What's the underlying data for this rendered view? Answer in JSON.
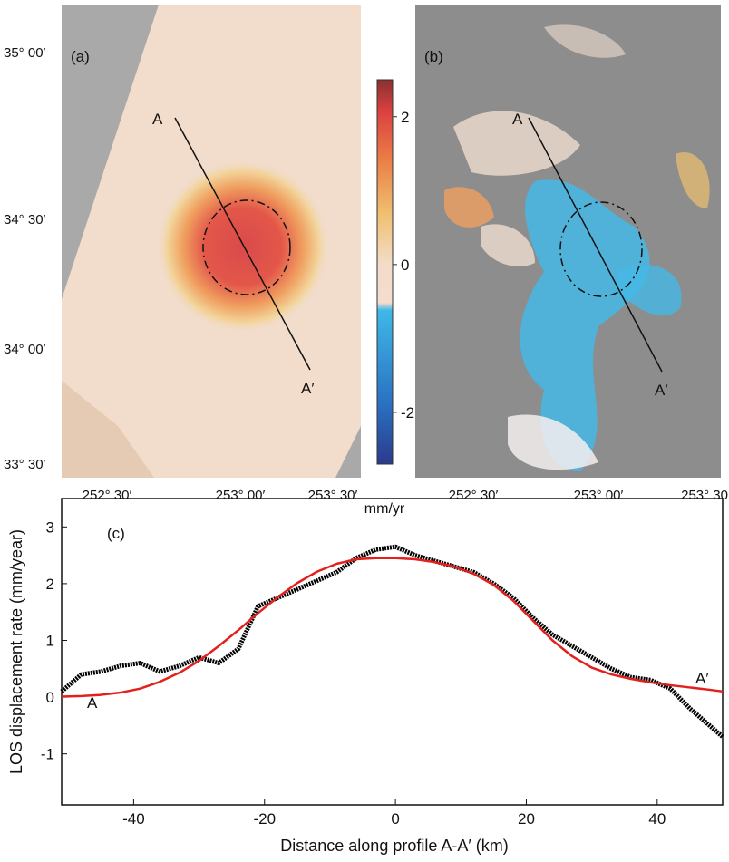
{
  "maps": {
    "lat_labels": [
      "35° 00′",
      "34° 30′",
      "34° 00′",
      "33° 30′"
    ],
    "panels": [
      {
        "label": "(a)",
        "profile_start": "A",
        "profile_end": "A′",
        "lon_labels": [
          "252° 30′",
          "253° 00′",
          "253° 30′"
        ]
      },
      {
        "label": "(b)",
        "profile_start": "A",
        "profile_end": "A′",
        "lon_labels": [
          "252° 30′",
          "253° 00′",
          "253° 30"
        ]
      }
    ]
  },
  "colorbar": {
    "lim": [
      -2.7,
      2.5
    ],
    "ticks": [
      -2,
      0,
      2
    ],
    "label": "mm/yr"
  },
  "chart_data": {
    "type": "line",
    "annotations": [
      "(c)",
      "A",
      "A′"
    ],
    "xlabel": "Distance along profile A-A′ (km)",
    "ylabel": "LOS displacement rate (mm/year)",
    "x": [
      -51,
      -48,
      -45,
      -42,
      -39,
      -36,
      -33,
      -30,
      -27,
      -24,
      -21,
      -18,
      -15,
      -12,
      -9,
      -6,
      -3,
      0,
      3,
      6,
      9,
      12,
      15,
      18,
      21,
      24,
      27,
      30,
      33,
      36,
      39,
      42,
      45,
      48,
      50
    ],
    "series": [
      {
        "color": "#000000",
        "width": 5,
        "values": [
          0.1,
          0.4,
          0.45,
          0.55,
          0.6,
          0.45,
          0.55,
          0.7,
          0.6,
          0.85,
          1.6,
          1.75,
          1.9,
          2.05,
          2.2,
          2.45,
          2.6,
          2.65,
          2.5,
          2.4,
          2.3,
          2.2,
          2.0,
          1.75,
          1.4,
          1.1,
          0.9,
          0.7,
          0.5,
          0.35,
          0.3,
          0.15,
          -0.2,
          -0.5,
          -0.7
        ]
      },
      {
        "color": "#e3201c",
        "width": 2.5,
        "values": [
          0.01,
          0.02,
          0.04,
          0.08,
          0.15,
          0.27,
          0.43,
          0.64,
          0.9,
          1.18,
          1.48,
          1.76,
          2.01,
          2.21,
          2.35,
          2.43,
          2.45,
          2.45,
          2.43,
          2.38,
          2.3,
          2.17,
          1.98,
          1.7,
          1.35,
          1.0,
          0.72,
          0.52,
          0.4,
          0.32,
          0.26,
          0.21,
          0.17,
          0.13,
          0.1
        ]
      }
    ],
    "xlim": [
      -51,
      50
    ],
    "ylim": [
      -1.9,
      3.5
    ],
    "xticks": [
      -40,
      -20,
      0,
      20,
      40
    ],
    "yticks": [
      -1,
      0,
      1,
      2,
      3
    ]
  }
}
